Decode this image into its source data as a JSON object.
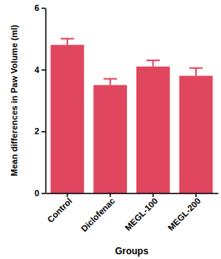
{
  "chart_data": {
    "type": "bar",
    "categories": [
      "Control",
      "Diclofenac",
      "MEGL-100",
      "MEGL-200"
    ],
    "values": [
      4.8,
      3.5,
      4.1,
      3.8
    ],
    "errors": [
      0.2,
      0.2,
      0.2,
      0.25
    ],
    "color": "#e0475f",
    "x_label": "Groups",
    "y_label": "Mean differences in Paw Volume (ml)",
    "ylim": [
      0,
      6
    ],
    "yticks": [
      0,
      2,
      4,
      6
    ]
  }
}
